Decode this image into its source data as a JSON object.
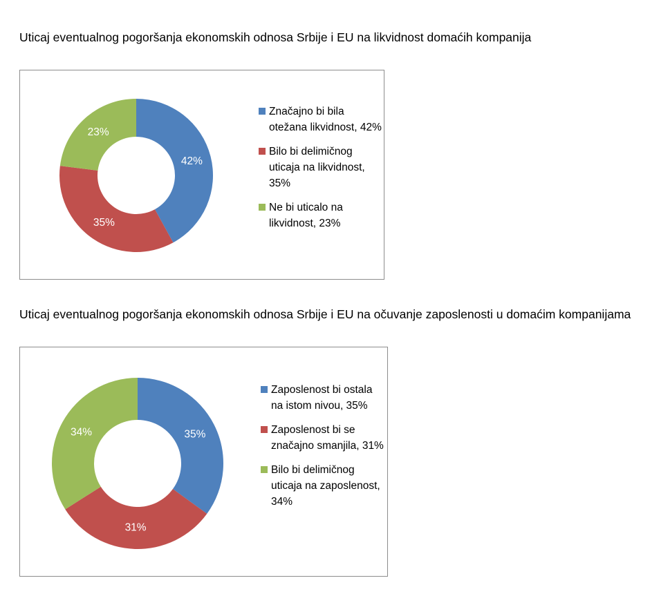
{
  "colors": {
    "blue": "#4f81bd",
    "red": "#c0504d",
    "green": "#9bbb59"
  },
  "chart_data": [
    {
      "type": "pie",
      "title": "Uticaj eventualnog pogoršanja ekonomskih odnosa Srbije i EU na likvidnost domaćih kompanija",
      "categories": [
        "Značajno bi bila otežana likvidnost, 42%",
        "Bilo bi delimičnog uticaja na likvidnost, 35%",
        "Ne bi uticalo na likvidnost, 23%"
      ],
      "values": [
        42,
        35,
        23
      ],
      "data_labels": [
        "42%",
        "35%",
        "23%"
      ],
      "colors": [
        "#4f81bd",
        "#c0504d",
        "#9bbb59"
      ],
      "legend": "right"
    },
    {
      "type": "pie",
      "title": "Uticaj eventualnog pogoršanja ekonomskih odnosa Srbije i EU na očuvanje zaposlenosti u domaćim kompanijama",
      "categories": [
        "Zaposlenost bi ostala na istom nivou, 35%",
        "Zaposlenost bi se značajno smanjila, 31%",
        "Bilo bi delimičnog uticaja na zaposlenost, 34%"
      ],
      "values": [
        35,
        31,
        34
      ],
      "data_labels": [
        "35%",
        "31%",
        "34%"
      ],
      "colors": [
        "#4f81bd",
        "#c0504d",
        "#9bbb59"
      ],
      "legend": "right"
    }
  ]
}
